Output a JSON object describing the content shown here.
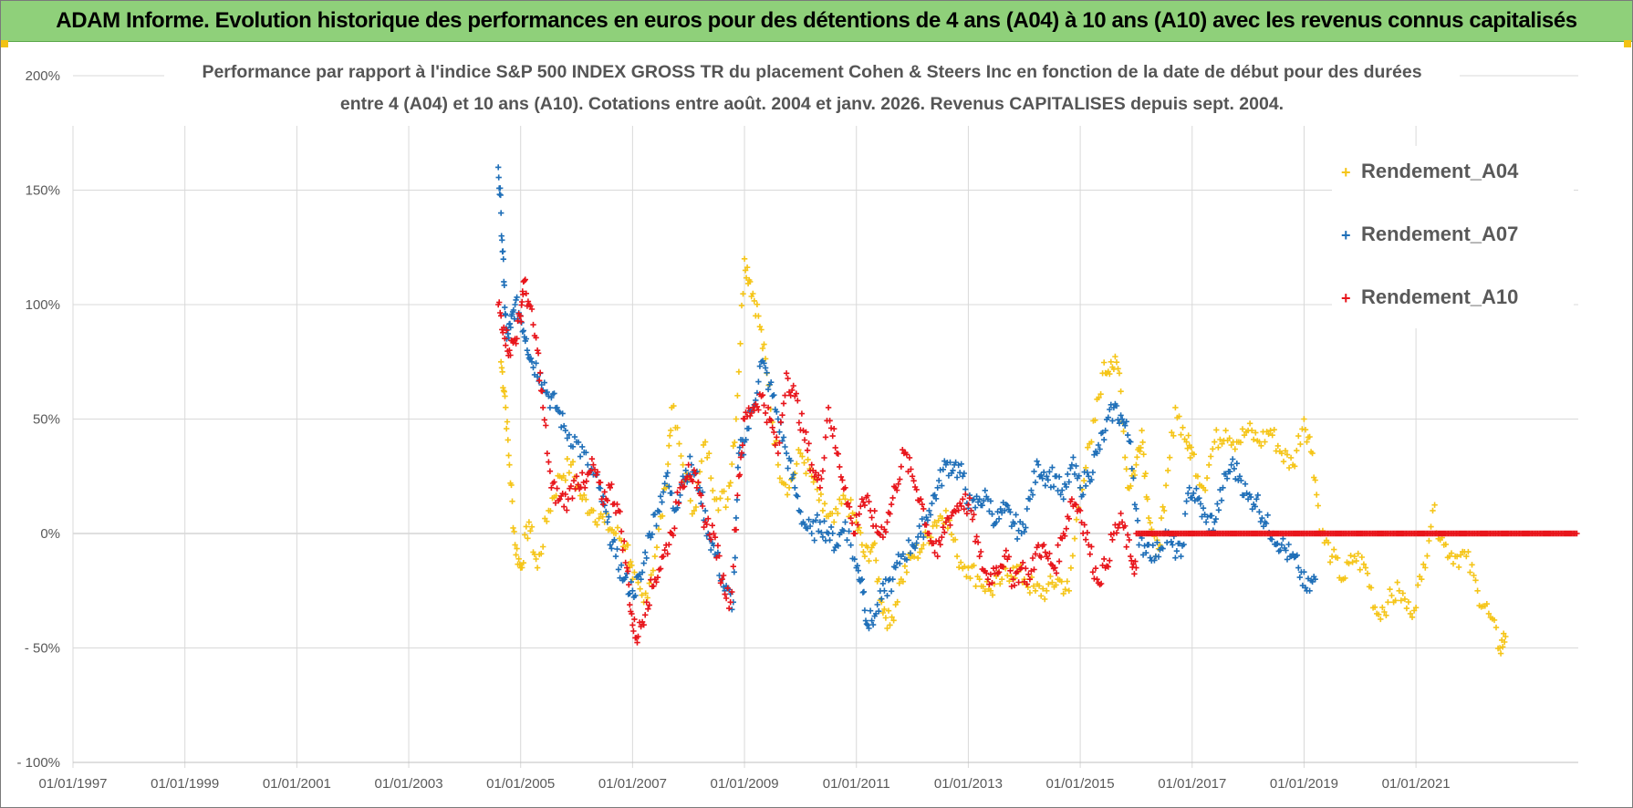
{
  "banner": {
    "title": "ADAM Informe. Evolution historique des performances en euros pour des détentions de 4 ans (A04) à 10 ans (A10) avec les revenus connus capitalisés"
  },
  "chart_data": {
    "type": "scatter",
    "title_lines": [
      "Performance par rapport à l'indice S&P 500 INDEX GROSS TR  du placement Cohen & Steers Inc en fonction de la date de début pour des durées",
      "entre 4 (A04) et 10 ans (A10). Cotations entre août. 2004 et janv. 2026. Revenus CAPITALISES depuis sept. 2004."
    ],
    "xlabel": "",
    "ylabel": "",
    "x_unit": "years",
    "xlim": [
      1997.0,
      2023.9
    ],
    "ylim": [
      -100,
      200
    ],
    "y_ticks": [
      200,
      150,
      100,
      50,
      0,
      -50,
      -100
    ],
    "y_tick_labels": [
      "200%",
      "150%",
      "100%",
      "50%",
      "0%",
      "- 50%",
      "- 100%"
    ],
    "x_ticks": [
      1997,
      1999,
      2001,
      2003,
      2005,
      2007,
      2009,
      2011,
      2013,
      2015,
      2017,
      2019,
      2021
    ],
    "x_tick_labels": [
      "01/01/1997",
      "01/01/1999",
      "01/01/2001",
      "01/01/2003",
      "01/01/2005",
      "01/01/2007",
      "01/01/2009",
      "01/01/2011",
      "01/01/2013",
      "01/01/2015",
      "01/01/2017",
      "01/01/2019",
      "01/01/2021"
    ],
    "grid": true,
    "legend_position": "top-right",
    "marker": "+",
    "series": [
      {
        "name": "Rendement_A04",
        "color": "#f5c518",
        "x": [
          2004.65,
          2004.72,
          2004.8,
          2004.9,
          2005.0,
          2005.15,
          2005.3,
          2005.5,
          2005.7,
          2005.9,
          2006.1,
          2006.3,
          2006.5,
          2006.7,
          2006.9,
          2007.0,
          2007.2,
          2007.4,
          2007.6,
          2007.7,
          2007.9,
          2008.1,
          2008.3,
          2008.5,
          2008.7,
          2008.85,
          2009.0,
          2009.1,
          2009.25,
          2009.4,
          2009.6,
          2009.8,
          2010.0,
          2010.2,
          2010.4,
          2010.6,
          2010.8,
          2011.0,
          2011.15,
          2011.3,
          2011.45,
          2011.6,
          2011.8,
          2012.0,
          2012.2,
          2012.4,
          2012.6,
          2012.8,
          2013.0,
          2013.2,
          2013.4,
          2013.6,
          2013.8,
          2014.0,
          2014.2,
          2014.4,
          2014.6,
          2014.8,
          2015.0,
          2015.2,
          2015.4,
          2015.55,
          2015.7,
          2015.85,
          2016.0,
          2016.1,
          2016.2,
          2016.35,
          2016.5,
          2016.7,
          2016.9,
          2017.0,
          2017.2,
          2017.4,
          2017.6,
          2017.8,
          2018.0,
          2018.2,
          2018.4,
          2018.6,
          2018.8,
          2019.0,
          2019.15,
          2019.3,
          2019.5,
          2019.7,
          2019.9,
          2020.1,
          2020.3,
          2020.5,
          2020.7,
          2020.9,
          2021.1,
          2021.3,
          2021.5,
          2021.7,
          2021.9,
          2022.1,
          2022.3,
          2022.5,
          2022.6
        ],
        "y": [
          75,
          60,
          30,
          -5,
          -15,
          5,
          -15,
          10,
          25,
          30,
          15,
          10,
          5,
          0,
          -5,
          -20,
          -30,
          -10,
          20,
          55,
          30,
          10,
          40,
          15,
          15,
          50,
          120,
          110,
          95,
          70,
          30,
          20,
          35,
          25,
          10,
          5,
          15,
          5,
          -10,
          -5,
          -30,
          -40,
          -20,
          -10,
          -5,
          5,
          10,
          -10,
          -15,
          -20,
          -25,
          -20,
          -15,
          -20,
          -25,
          -25,
          -20,
          -25,
          20,
          40,
          70,
          75,
          70,
          20,
          30,
          45,
          15,
          -10,
          10,
          55,
          40,
          35,
          20,
          40,
          45,
          40,
          45,
          40,
          45,
          35,
          30,
          50,
          35,
          0,
          -10,
          -20,
          -10,
          -15,
          -35,
          -30,
          -25,
          -35,
          -20,
          10,
          -5,
          -10,
          -10,
          -25,
          -35,
          -50,
          -45
        ]
      },
      {
        "name": "Rendement_A07",
        "color": "#1f6fb8",
        "x": [
          2004.6,
          2004.65,
          2004.7,
          2004.75,
          2004.82,
          2004.9,
          2005.0,
          2005.1,
          2005.2,
          2005.35,
          2005.5,
          2005.65,
          2005.8,
          2006.0,
          2006.2,
          2006.4,
          2006.55,
          2006.7,
          2006.85,
          2007.0,
          2007.15,
          2007.3,
          2007.45,
          2007.6,
          2007.75,
          2007.9,
          2008.05,
          2008.2,
          2008.35,
          2008.5,
          2008.65,
          2008.8,
          2008.9,
          2009.0,
          2009.15,
          2009.3,
          2009.45,
          2009.6,
          2009.75,
          2009.9,
          2010.05,
          2010.2,
          2010.35,
          2010.5,
          2010.65,
          2010.8,
          2011.0,
          2011.1,
          2011.2,
          2011.35,
          2011.5,
          2011.65,
          2011.8,
          2012.0,
          2012.15,
          2012.3,
          2012.45,
          2012.6,
          2012.75,
          2012.9,
          2013.05,
          2013.2,
          2013.35,
          2013.5,
          2013.65,
          2013.8,
          2013.95,
          2014.1,
          2014.25,
          2014.4,
          2014.55,
          2014.7,
          2014.85,
          2015.0,
          2015.15,
          2015.3,
          2015.45,
          2015.6,
          2015.75,
          2015.9,
          2016.05,
          2016.2,
          2016.35,
          2016.5,
          2016.65,
          2016.8,
          2016.95,
          2017.1,
          2017.25,
          2017.4,
          2017.55,
          2017.7,
          2017.85,
          2018.0,
          2018.15,
          2018.3,
          2018.45,
          2018.6,
          2018.75,
          2018.9,
          2019.05,
          2019.2
        ],
        "y": [
          160,
          140,
          110,
          85,
          90,
          100,
          95,
          85,
          75,
          70,
          60,
          55,
          45,
          40,
          30,
          20,
          5,
          -10,
          -20,
          -25,
          -20,
          0,
          10,
          25,
          10,
          25,
          30,
          20,
          0,
          -10,
          -25,
          -30,
          35,
          40,
          55,
          75,
          65,
          50,
          35,
          20,
          5,
          0,
          5,
          0,
          -5,
          5,
          -15,
          -20,
          -40,
          -35,
          -25,
          -20,
          -10,
          -5,
          0,
          10,
          20,
          30,
          30,
          25,
          10,
          15,
          15,
          5,
          10,
          5,
          0,
          15,
          30,
          25,
          25,
          15,
          30,
          20,
          25,
          35,
          45,
          55,
          50,
          40,
          -5,
          -5,
          -10,
          0,
          -5,
          -10,
          20,
          15,
          5,
          5,
          20,
          30,
          25,
          15,
          15,
          5,
          0,
          -5,
          -10,
          -15,
          -25,
          -20
        ]
      },
      {
        "name": "Rendement_A10",
        "color": "#e8151b",
        "x": [
          2004.6,
          2004.7,
          2004.8,
          2004.9,
          2005.0,
          2005.05,
          2005.15,
          2005.3,
          2005.4,
          2005.55,
          2005.7,
          2005.85,
          2006.0,
          2006.15,
          2006.3,
          2006.45,
          2006.6,
          2006.75,
          2006.9,
          2007.0,
          2007.1,
          2007.25,
          2007.4,
          2007.55,
          2007.7,
          2007.85,
          2008.0,
          2008.15,
          2008.3,
          2008.45,
          2008.6,
          2008.75,
          2008.9,
          2009.0,
          2009.15,
          2009.3,
          2009.45,
          2009.6,
          2009.75,
          2009.9,
          2010.05,
          2010.2,
          2010.35,
          2010.5,
          2010.65,
          2010.8,
          2010.95,
          2011.1,
          2011.25,
          2011.4,
          2011.55,
          2011.7,
          2011.85,
          2012.0,
          2012.15,
          2012.3,
          2012.45,
          2012.6,
          2012.75,
          2012.9,
          2013.05,
          2013.2,
          2013.35,
          2013.5,
          2013.65,
          2013.8,
          2013.95,
          2014.1,
          2014.25,
          2014.4,
          2014.55,
          2014.7,
          2014.85,
          2015.0,
          2015.15,
          2015.3,
          2015.45,
          2015.6,
          2015.75,
          2015.9,
          2016.0
        ],
        "y": [
          100,
          90,
          80,
          85,
          95,
          110,
          100,
          80,
          55,
          20,
          15,
          15,
          25,
          20,
          30,
          15,
          20,
          10,
          -15,
          -40,
          -45,
          -30,
          -20,
          -10,
          0,
          20,
          30,
          20,
          5,
          0,
          -20,
          -30,
          25,
          50,
          55,
          60,
          50,
          35,
          70,
          60,
          45,
          30,
          20,
          55,
          35,
          20,
          0,
          15,
          10,
          0,
          5,
          20,
          35,
          25,
          15,
          0,
          -10,
          5,
          10,
          15,
          10,
          -10,
          -20,
          -15,
          -10,
          -20,
          -15,
          -20,
          -5,
          -10,
          -15,
          0,
          15,
          10,
          -5,
          -20,
          -15,
          0,
          5,
          -10,
          -15
        ]
      }
    ],
    "flat_line": {
      "series": "Rendement_A10",
      "x_start": 2016.0,
      "x_end": 2023.9,
      "y": 0
    }
  }
}
